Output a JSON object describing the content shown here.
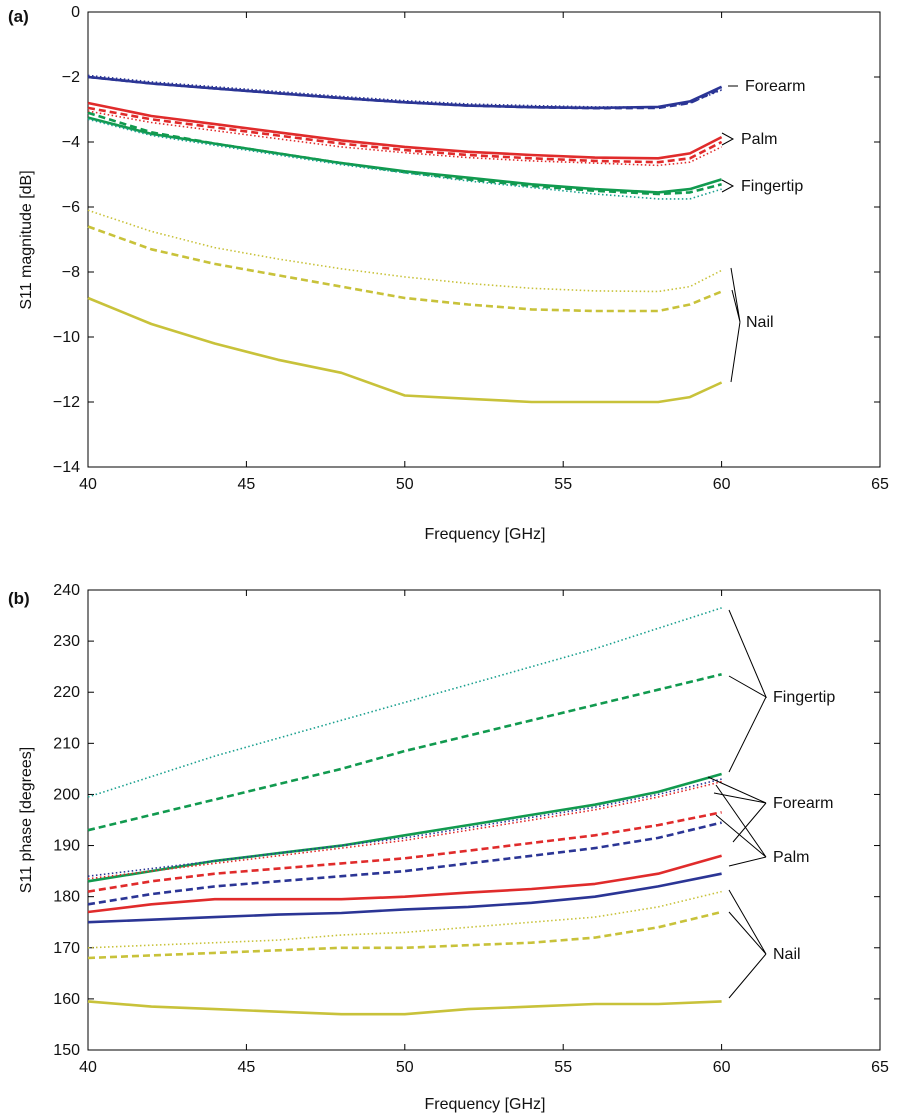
{
  "chart_data": [
    {
      "type": "line",
      "panel_label": "(a)",
      "xlabel": "Frequency [GHz]",
      "ylabel": "S11 magnitude [dB]",
      "xlim": [
        40,
        65
      ],
      "ylim": [
        -14,
        0
      ],
      "xticks": [
        40,
        45,
        50,
        55,
        60,
        65
      ],
      "yticks": [
        -14,
        -12,
        -10,
        -8,
        -6,
        -4,
        -2,
        0
      ],
      "grid": false,
      "x": [
        40,
        42,
        44,
        46,
        48,
        50,
        52,
        54,
        56,
        58,
        59,
        60
      ],
      "series": [
        {
          "group": "Forearm",
          "style": "solid",
          "color": "#2b3595",
          "values": [
            -2.0,
            -2.2,
            -2.35,
            -2.5,
            -2.65,
            -2.78,
            -2.88,
            -2.93,
            -2.95,
            -2.92,
            -2.75,
            -2.3
          ]
        },
        {
          "group": "Forearm",
          "style": "dashed",
          "color": "#2b3595",
          "values": [
            -2.0,
            -2.2,
            -2.35,
            -2.5,
            -2.65,
            -2.78,
            -2.88,
            -2.93,
            -2.96,
            -2.95,
            -2.8,
            -2.35
          ]
        },
        {
          "group": "Forearm",
          "style": "dotted",
          "color": "#2b3595",
          "values": [
            -1.95,
            -2.15,
            -2.3,
            -2.45,
            -2.6,
            -2.73,
            -2.83,
            -2.88,
            -2.92,
            -2.93,
            -2.8,
            -2.4
          ]
        },
        {
          "group": "Palm",
          "style": "solid",
          "color": "#e02b2b",
          "values": [
            -2.8,
            -3.2,
            -3.45,
            -3.7,
            -3.95,
            -4.15,
            -4.3,
            -4.4,
            -4.48,
            -4.5,
            -4.35,
            -3.85
          ]
        },
        {
          "group": "Palm",
          "style": "dashed",
          "color": "#e02b2b",
          "values": [
            -2.95,
            -3.3,
            -3.55,
            -3.8,
            -4.05,
            -4.25,
            -4.4,
            -4.5,
            -4.58,
            -4.62,
            -4.5,
            -4.0
          ]
        },
        {
          "group": "Palm",
          "style": "dotted",
          "color": "#e02b2b",
          "values": [
            -3.05,
            -3.4,
            -3.65,
            -3.9,
            -4.15,
            -4.33,
            -4.48,
            -4.58,
            -4.65,
            -4.72,
            -4.62,
            -4.15
          ]
        },
        {
          "group": "Fingertip",
          "style": "solid",
          "color": "#119a4f",
          "values": [
            -3.25,
            -3.75,
            -4.05,
            -4.35,
            -4.65,
            -4.9,
            -5.1,
            -5.3,
            -5.45,
            -5.55,
            -5.45,
            -5.15
          ]
        },
        {
          "group": "Fingertip",
          "style": "dashed",
          "color": "#119a4f",
          "values": [
            -3.1,
            -3.7,
            -4.05,
            -4.35,
            -4.65,
            -4.93,
            -5.15,
            -5.35,
            -5.5,
            -5.6,
            -5.55,
            -5.3
          ]
        },
        {
          "group": "Fingertip",
          "style": "dotted",
          "color": "#1aa08f",
          "values": [
            -3.3,
            -3.8,
            -4.1,
            -4.4,
            -4.7,
            -4.95,
            -5.2,
            -5.4,
            -5.6,
            -5.75,
            -5.75,
            -5.45
          ]
        },
        {
          "group": "Nail",
          "style": "solid",
          "color": "#c8c23a",
          "values": [
            -8.8,
            -9.6,
            -10.2,
            -10.7,
            -11.1,
            -11.8,
            -11.9,
            -12.0,
            -12.0,
            -12.0,
            -11.85,
            -11.4
          ]
        },
        {
          "group": "Nail",
          "style": "dashed",
          "color": "#c8c23a",
          "values": [
            -6.6,
            -7.3,
            -7.75,
            -8.1,
            -8.45,
            -8.8,
            -9.0,
            -9.15,
            -9.2,
            -9.2,
            -9.0,
            -8.6
          ]
        },
        {
          "group": "Nail",
          "style": "dotted",
          "color": "#c8c23a",
          "values": [
            -6.1,
            -6.75,
            -7.25,
            -7.6,
            -7.9,
            -8.15,
            -8.35,
            -8.5,
            -8.58,
            -8.6,
            -8.45,
            -7.95
          ]
        }
      ],
      "annotations": [
        "Forearm",
        "Palm",
        "Fingertip",
        "Nail"
      ]
    },
    {
      "type": "line",
      "panel_label": "(b)",
      "xlabel": "Frequency [GHz]",
      "ylabel": "S11 phase [degrees]",
      "xlim": [
        40,
        65
      ],
      "ylim": [
        150,
        240
      ],
      "xticks": [
        40,
        45,
        50,
        55,
        60,
        65
      ],
      "yticks": [
        150,
        160,
        170,
        180,
        190,
        200,
        210,
        220,
        230,
        240
      ],
      "grid": false,
      "x": [
        40,
        42,
        44,
        46,
        48,
        50,
        52,
        54,
        56,
        58,
        60
      ],
      "series": [
        {
          "group": "Fingertip",
          "style": "dotted",
          "color": "#1aa08f",
          "values": [
            199.5,
            203.5,
            207.5,
            211,
            214.5,
            218,
            221.5,
            225,
            228.5,
            232.5,
            236.5
          ]
        },
        {
          "group": "Fingertip",
          "style": "dashed",
          "color": "#119a4f",
          "values": [
            193,
            196,
            199,
            202,
            205,
            208.5,
            211.5,
            214.5,
            217.5,
            220.5,
            223.5
          ]
        },
        {
          "group": "Fingertip",
          "style": "solid",
          "color": "#119a4f",
          "values": [
            183,
            185,
            187,
            188.5,
            190,
            192,
            194,
            196,
            198,
            200.5,
            204
          ]
        },
        {
          "group": "Forearm",
          "style": "dotted",
          "color": "#2b3595",
          "values": [
            184,
            185.5,
            187,
            188.5,
            190,
            191.5,
            193.5,
            195.5,
            197.5,
            200,
            203
          ]
        },
        {
          "group": "Palm",
          "style": "dotted",
          "color": "#e02b2b",
          "values": [
            183.5,
            185,
            186.5,
            188,
            189.5,
            191,
            193,
            195,
            197,
            199.5,
            202.5
          ]
        },
        {
          "group": "Palm",
          "style": "dashed",
          "color": "#e02b2b",
          "values": [
            181,
            183,
            184.5,
            185.5,
            186.5,
            187.5,
            189,
            190.5,
            192,
            194,
            196.5
          ]
        },
        {
          "group": "Forearm",
          "style": "dashed",
          "color": "#2b3595",
          "values": [
            178.5,
            180.5,
            182,
            183,
            184,
            185,
            186.5,
            188,
            189.5,
            191.5,
            194.5
          ]
        },
        {
          "group": "Palm",
          "style": "solid",
          "color": "#e02b2b",
          "values": [
            177,
            178.5,
            179.5,
            179.5,
            179.5,
            180,
            180.8,
            181.5,
            182.5,
            184.5,
            188
          ]
        },
        {
          "group": "Forearm",
          "style": "solid",
          "color": "#2b3595",
          "values": [
            175,
            175.5,
            176,
            176.5,
            176.8,
            177.5,
            178,
            178.8,
            180,
            182,
            184.5
          ]
        },
        {
          "group": "Nail",
          "style": "dotted",
          "color": "#c8c23a",
          "values": [
            170,
            170.5,
            171,
            171.5,
            172.5,
            173,
            174,
            175,
            176,
            178,
            181
          ]
        },
        {
          "group": "Nail",
          "style": "dashed",
          "color": "#c8c23a",
          "values": [
            168,
            168.5,
            169,
            169.5,
            170,
            170,
            170.5,
            171,
            172,
            174,
            177
          ]
        },
        {
          "group": "Nail",
          "style": "solid",
          "color": "#c8c23a",
          "values": [
            159.5,
            158.5,
            158,
            157.5,
            157,
            157,
            158,
            158.5,
            159,
            159,
            159.5
          ]
        }
      ],
      "annotations": [
        "Fingertip",
        "Forearm",
        "Palm",
        "Nail"
      ]
    }
  ]
}
